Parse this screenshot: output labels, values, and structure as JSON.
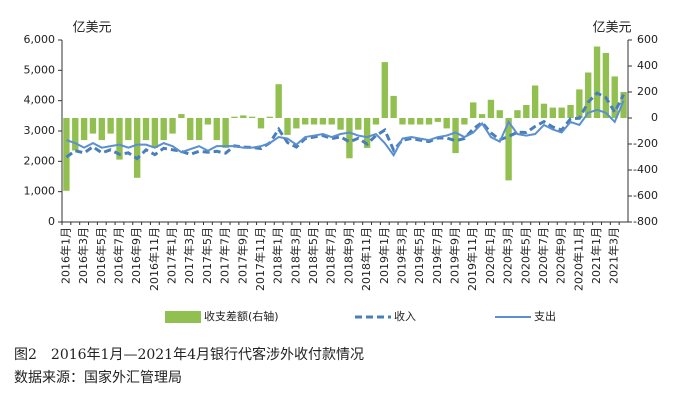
{
  "chart_data": {
    "type": "bar",
    "y_label": "亿美元",
    "y2_label": "亿美元",
    "caption": "图2　2016年1月—2021年4月银行代客涉外收付款情况",
    "source": "数据来源：国家外汇管理局",
    "categories": [
      "2016年1月",
      null,
      "2016年3月",
      null,
      "2016年5月",
      null,
      "2016年7月",
      null,
      "2016年9月",
      null,
      "2016年11月",
      null,
      "2017年1月",
      null,
      "2017年3月",
      null,
      "2017年5月",
      null,
      "2017年7月",
      null,
      "2017年9月",
      null,
      "2017年11月",
      null,
      "2018年1月",
      null,
      "2018年3月",
      null,
      "2018年5月",
      null,
      "2018年7月",
      null,
      "2018年9月",
      null,
      "2018年11月",
      null,
      "2019年1月",
      null,
      "2019年3月",
      null,
      "2019年5月",
      null,
      "2019年7月",
      null,
      "2019年9月",
      null,
      "2019年11月",
      null,
      "2020年1月",
      null,
      "2020年3月",
      null,
      "2020年5月",
      null,
      "2020年7月",
      null,
      "2020年9月",
      null,
      "2020年11月",
      null,
      "2021年1月",
      null,
      "2021年3月",
      null
    ],
    "series": [
      {
        "name": "收支差额(右轴)",
        "type": "bar",
        "axis": "y2",
        "color": "#92c050",
        "values": [
          -560,
          -250,
          -170,
          -120,
          -170,
          -120,
          -320,
          -170,
          -460,
          -170,
          -230,
          -170,
          -120,
          30,
          -170,
          -170,
          -50,
          -170,
          -230,
          10,
          20,
          10,
          -80,
          10,
          260,
          -130,
          -80,
          -50,
          -50,
          -50,
          -50,
          -90,
          -310,
          -90,
          -230,
          -50,
          430,
          170,
          -50,
          -50,
          -50,
          -50,
          -30,
          -80,
          -270,
          -50,
          120,
          30,
          140,
          60,
          -480,
          60,
          100,
          250,
          110,
          80,
          80,
          100,
          220,
          350,
          550,
          500,
          320,
          200
        ]
      },
      {
        "name": "收入",
        "type": "line",
        "dashed": true,
        "color": "#4a7ebb",
        "values": [
          2140,
          2350,
          2280,
          2480,
          2280,
          2380,
          2230,
          2280,
          2090,
          2380,
          2220,
          2430,
          2380,
          2330,
          2230,
          2330,
          2300,
          2330,
          2270,
          2510,
          2470,
          2460,
          2420,
          2610,
          3060,
          2620,
          2470,
          2750,
          2800,
          2850,
          2750,
          2810,
          2640,
          2760,
          2570,
          2850,
          3030,
          2370,
          2700,
          2750,
          2700,
          2650,
          2770,
          2770,
          2680,
          2750,
          3070,
          3280,
          2940,
          2710,
          2820,
          2960,
          2950,
          3150,
          3310,
          3130,
          3030,
          3400,
          3420,
          3950,
          4250,
          4100,
          3620,
          4200
        ]
      },
      {
        "name": "支出",
        "type": "line",
        "dashed": false,
        "color": "#5b8fd0",
        "values": [
          2700,
          2600,
          2450,
          2600,
          2450,
          2500,
          2550,
          2450,
          2550,
          2550,
          2450,
          2600,
          2500,
          2300,
          2400,
          2500,
          2350,
          2500,
          2500,
          2500,
          2450,
          2450,
          2500,
          2600,
          2800,
          2750,
          2550,
          2800,
          2850,
          2900,
          2800,
          2900,
          2950,
          2850,
          2800,
          2900,
          2600,
          2200,
          2750,
          2800,
          2750,
          2700,
          2800,
          2850,
          2950,
          2800,
          2950,
          3250,
          2800,
          2650,
          3300,
          2900,
          2850,
          2900,
          3200,
          3050,
          2950,
          3300,
          3200,
          3600,
          3700,
          3600,
          3300,
          4000
        ]
      }
    ],
    "ylim": [
      0,
      6000
    ],
    "yticks": [
      0,
      {
        "value": 1000,
        "label": "1,000"
      },
      {
        "value": 2000,
        "label": "2,000"
      },
      {
        "value": 3000,
        "label": "3,000"
      },
      {
        "value": 4000,
        "label": "4,000"
      },
      {
        "value": 5000,
        "label": "5,000"
      },
      {
        "value": 6000,
        "label": "6,000"
      }
    ],
    "y2lim": [
      -800,
      600
    ],
    "y2ticks": [
      -800,
      -600,
      -400,
      -200,
      0,
      200,
      400,
      600
    ]
  }
}
